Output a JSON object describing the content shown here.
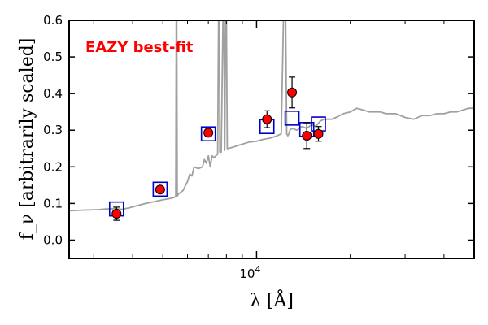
{
  "chart_data": {
    "type": "scatter",
    "title": "",
    "xlabel": "λ [Å]",
    "ylabel": "f_ν [arbitrarily scaled]",
    "xscale": "log",
    "xlim": [
      2500,
      50000
    ],
    "ylim": [
      -0.05,
      0.6
    ],
    "grid": false,
    "annotation": {
      "text": "EAZY best-fit",
      "color": "#ff0000"
    },
    "x_ticks": [
      {
        "value": 10000,
        "base": "10",
        "exponent": "4"
      }
    ],
    "y_ticks": [
      {
        "value": 0.0,
        "label": "0.0"
      },
      {
        "value": 0.1,
        "label": "0.1"
      },
      {
        "value": 0.2,
        "label": "0.2"
      },
      {
        "value": 0.3,
        "label": "0.3"
      },
      {
        "value": 0.4,
        "label": "0.4"
      },
      {
        "value": 0.5,
        "label": "0.5"
      },
      {
        "value": 0.6,
        "label": "0.6"
      }
    ],
    "series": [
      {
        "style": "line",
        "color": "#a0a0a0",
        "x": [
          2500,
          2800,
          3100,
          3300,
          3500,
          3700,
          3900,
          4100,
          4400,
          4700,
          5000,
          5300,
          5450,
          5500,
          5520,
          5540,
          5560,
          5600,
          5800,
          6000,
          6100,
          6200,
          6300,
          6500,
          6700,
          6800,
          6900,
          7000,
          7100,
          7200,
          7300,
          7400,
          7500,
          7550,
          7600,
          7620,
          7700,
          7800,
          7850,
          7900,
          7950,
          8000,
          8050,
          8100,
          8500,
          9000,
          9500,
          10000,
          10500,
          11000,
          11500,
          12000,
          12200,
          12300,
          12400,
          12500,
          12600,
          12700,
          12800,
          13000,
          13500,
          14000,
          14500,
          15000,
          15500,
          16000,
          16500,
          17000,
          17500,
          18000,
          18500,
          19000,
          20000,
          21000,
          22000,
          23000,
          24000,
          25000,
          26000,
          27000,
          28000,
          30000,
          32000,
          34000,
          36000,
          38000,
          40000,
          42000,
          44000,
          46000,
          48000,
          50000
        ],
        "y": [
          0.08,
          0.082,
          0.083,
          0.085,
          0.086,
          0.084,
          0.088,
          0.093,
          0.1,
          0.105,
          0.11,
          0.114,
          0.117,
          0.12,
          0.6,
          0.6,
          0.12,
          0.125,
          0.135,
          0.16,
          0.18,
          0.175,
          0.2,
          0.195,
          0.2,
          0.22,
          0.21,
          0.23,
          0.2,
          0.23,
          0.225,
          0.23,
          0.235,
          0.6,
          0.6,
          0.24,
          0.24,
          0.6,
          0.6,
          0.245,
          0.6,
          0.6,
          0.25,
          0.25,
          0.255,
          0.262,
          0.268,
          0.27,
          0.275,
          0.278,
          0.283,
          0.29,
          0.6,
          0.6,
          0.6,
          0.29,
          0.285,
          0.29,
          0.3,
          0.305,
          0.3,
          0.31,
          0.305,
          0.315,
          0.31,
          0.325,
          0.33,
          0.33,
          0.33,
          0.335,
          0.34,
          0.345,
          0.35,
          0.36,
          0.355,
          0.35,
          0.35,
          0.35,
          0.345,
          0.345,
          0.345,
          0.335,
          0.33,
          0.34,
          0.34,
          0.345,
          0.345,
          0.35,
          0.35,
          0.355,
          0.36,
          0.36
        ]
      },
      {
        "style": "open-squares",
        "color": "#0000cc",
        "x": [
          3550,
          4900,
          7000,
          10800,
          13000,
          14500,
          15800
        ],
        "y": [
          0.085,
          0.139,
          0.29,
          0.31,
          0.333,
          0.302,
          0.317
        ]
      },
      {
        "style": "filled-circles-errorbars",
        "color": "#ff0000",
        "x": [
          3550,
          4900,
          7000,
          10800,
          13000,
          14500,
          15800
        ],
        "y": [
          0.072,
          0.138,
          0.293,
          0.33,
          0.403,
          0.285,
          0.29
        ],
        "yerr": [
          0.018,
          0.009,
          0.01,
          0.023,
          0.042,
          0.035,
          0.02
        ]
      }
    ]
  }
}
